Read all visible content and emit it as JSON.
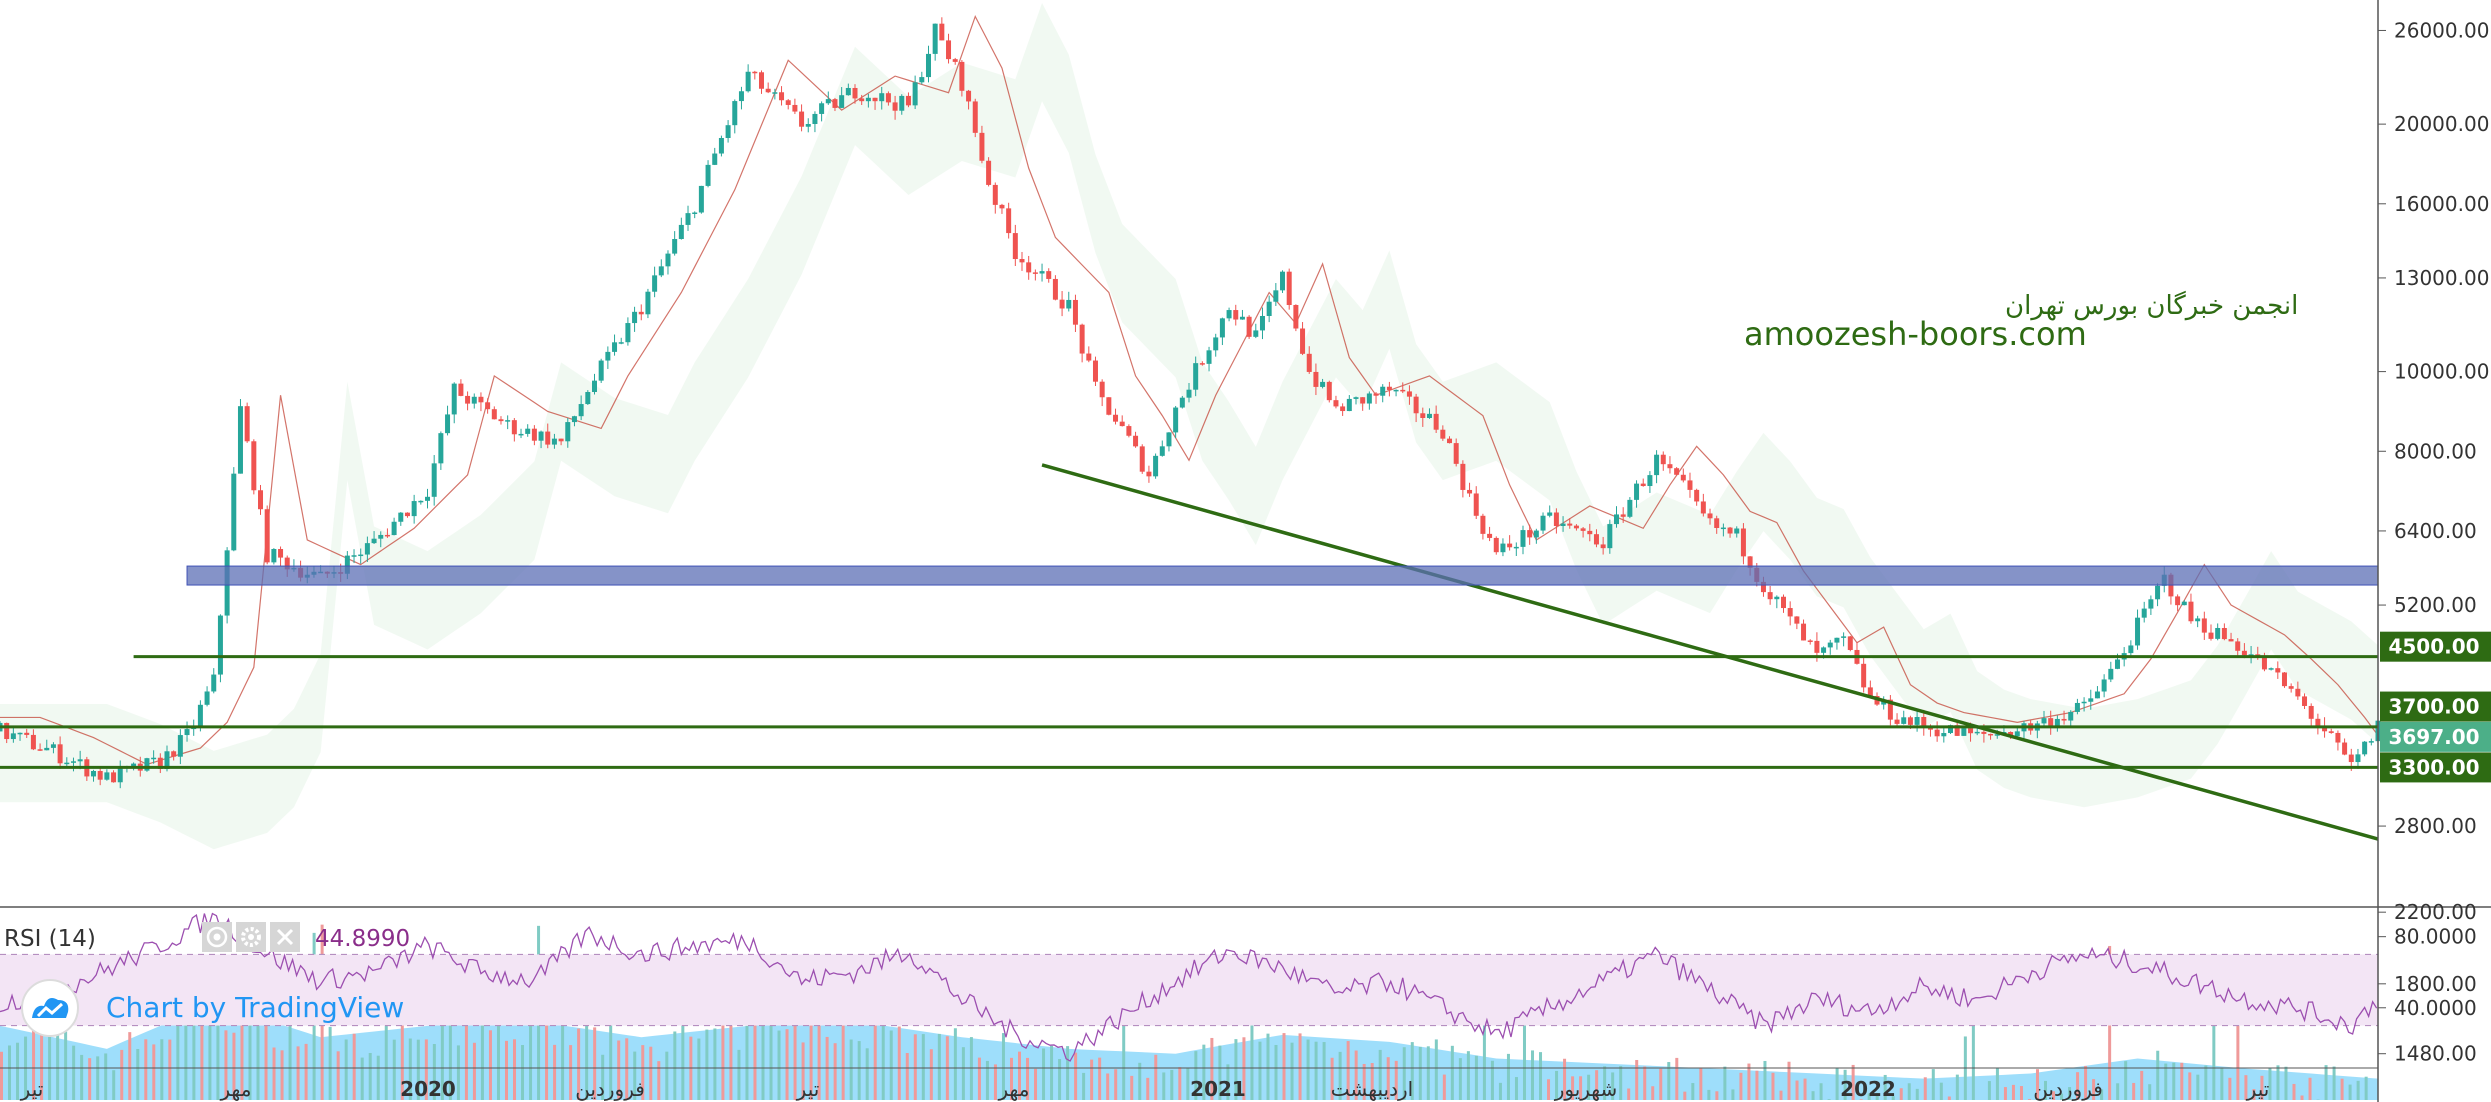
{
  "chart_data": [
    {
      "type": "candlestick",
      "title": "",
      "y_scale": "log",
      "ylim": [
        1300,
        28000
      ],
      "y_ticks": [
        26000,
        20000,
        16000,
        13000,
        10000,
        8000,
        6400,
        5200,
        4500,
        3700,
        3697,
        3300,
        2800,
        2200,
        1800,
        1480
      ],
      "y_tick_labels": [
        "26000.00",
        "20000.00",
        "16000.00",
        "13000.00",
        "10000.00",
        "8000.00",
        "6400.00",
        "5200.00",
        "4500.00",
        "3700.00",
        "3697.00",
        "3300.00",
        "2800.00",
        "2200.00",
        "1800.00",
        "1480.00"
      ],
      "highlighted_prices": [
        {
          "label": "4500.00",
          "color": "#2e6b13"
        },
        {
          "label": "3700.00",
          "color": "#2e6b13"
        },
        {
          "label": "3697.00",
          "color": "#4caf88"
        },
        {
          "label": "3300.00",
          "color": "#2e6b13"
        }
      ],
      "x_labels": [
        "تیر",
        "مهر",
        "2020",
        "فروردین",
        "تیر",
        "مهر",
        "2021",
        "اردیبهشت",
        "شهریور",
        "2022",
        "فروردین",
        "تیر"
      ],
      "price_path": [
        [
          0,
          3650
        ],
        [
          2,
          3450
        ],
        [
          4,
          3200
        ],
        [
          6,
          3350
        ],
        [
          7,
          3600
        ],
        [
          8,
          4200
        ],
        [
          9,
          9000
        ],
        [
          10,
          6000
        ],
        [
          12,
          5600
        ],
        [
          14,
          6200
        ],
        [
          16,
          7200
        ],
        [
          17,
          9500
        ],
        [
          19,
          8600
        ],
        [
          21,
          8200
        ],
        [
          22,
          9500
        ],
        [
          24,
          12000
        ],
        [
          26,
          16000
        ],
        [
          28,
          23000
        ],
        [
          30,
          20000
        ],
        [
          32,
          22000
        ],
        [
          34,
          21000
        ],
        [
          35,
          26000
        ],
        [
          36,
          22500
        ],
        [
          37,
          17000
        ],
        [
          38,
          14000
        ],
        [
          40,
          12000
        ],
        [
          41,
          9500
        ],
        [
          42,
          8500
        ],
        [
          43,
          7500
        ],
        [
          44,
          9000
        ],
        [
          46,
          12000
        ],
        [
          47,
          11000
        ],
        [
          48,
          13000
        ],
        [
          49,
          10000
        ],
        [
          50,
          9000
        ],
        [
          52,
          9500
        ],
        [
          54,
          8500
        ],
        [
          55,
          7000
        ],
        [
          56,
          6000
        ],
        [
          58,
          6600
        ],
        [
          60,
          6200
        ],
        [
          61,
          7000
        ],
        [
          62,
          7800
        ],
        [
          63,
          7200
        ],
        [
          64,
          6500
        ],
        [
          65,
          6300
        ],
        [
          66,
          5500
        ],
        [
          68,
          4500
        ],
        [
          69,
          4700
        ],
        [
          70,
          4000
        ],
        [
          71,
          3800
        ],
        [
          72,
          3700
        ],
        [
          74,
          3600
        ],
        [
          76,
          3700
        ],
        [
          78,
          3900
        ],
        [
          79,
          4300
        ],
        [
          80,
          4900
        ],
        [
          81,
          5600
        ],
        [
          82,
          5000
        ],
        [
          84,
          4600
        ],
        [
          85,
          4300
        ],
        [
          86,
          4000
        ],
        [
          87,
          3650
        ],
        [
          88,
          3300
        ],
        [
          89,
          3697
        ]
      ],
      "volume_path": [
        [
          0,
          1600
        ],
        [
          4,
          1500
        ],
        [
          8,
          1700
        ],
        [
          12,
          1550
        ],
        [
          16,
          1600
        ],
        [
          20,
          1620
        ],
        [
          24,
          1550
        ],
        [
          28,
          1600
        ],
        [
          32,
          1620
        ],
        [
          36,
          1550
        ],
        [
          40,
          1500
        ],
        [
          44,
          1480
        ],
        [
          48,
          1560
        ],
        [
          52,
          1530
        ],
        [
          56,
          1460
        ],
        [
          60,
          1440
        ],
        [
          64,
          1420
        ],
        [
          68,
          1400
        ],
        [
          72,
          1380
        ],
        [
          76,
          1400
        ],
        [
          80,
          1460
        ],
        [
          84,
          1420
        ],
        [
          89,
          1380
        ]
      ],
      "drawings": [
        {
          "kind": "trendline",
          "color": "#2e6b13",
          "from": [
            39,
            7700
          ],
          "to": [
            89,
            2700
          ]
        },
        {
          "kind": "horizontal",
          "color": "#2e6b13",
          "price": 4500,
          "from_x": 5
        },
        {
          "kind": "horizontal",
          "color": "#2e6b13",
          "price": 3697,
          "from_x": 0
        },
        {
          "kind": "horizontal",
          "color": "#2e6b13",
          "price": 3300,
          "from_x": 0
        },
        {
          "kind": "zone",
          "color": "#5c6fb5",
          "price_top": 5800,
          "price_bottom": 5500,
          "from_x": 7,
          "to_x": 89
        }
      ]
    },
    {
      "type": "line",
      "title": "RSI (14)",
      "series": [
        {
          "name": "RSI (14)",
          "current": "44.8990"
        }
      ],
      "ylim": [
        5,
        95
      ],
      "y_ticks": [
        80,
        40
      ],
      "y_tick_labels": [
        "80.0000",
        "40.0000"
      ],
      "band": [
        30,
        70
      ],
      "values_path": [
        [
          0,
          42
        ],
        [
          3,
          55
        ],
        [
          6,
          75
        ],
        [
          8,
          92
        ],
        [
          10,
          70
        ],
        [
          12,
          55
        ],
        [
          14,
          60
        ],
        [
          16,
          75
        ],
        [
          18,
          60
        ],
        [
          20,
          55
        ],
        [
          22,
          82
        ],
        [
          24,
          70
        ],
        [
          26,
          75
        ],
        [
          28,
          78
        ],
        [
          30,
          55
        ],
        [
          32,
          60
        ],
        [
          34,
          72
        ],
        [
          36,
          45
        ],
        [
          38,
          25
        ],
        [
          40,
          15
        ],
        [
          42,
          35
        ],
        [
          44,
          55
        ],
        [
          46,
          72
        ],
        [
          48,
          62
        ],
        [
          50,
          48
        ],
        [
          52,
          55
        ],
        [
          54,
          40
        ],
        [
          56,
          25
        ],
        [
          58,
          40
        ],
        [
          60,
          55
        ],
        [
          62,
          70
        ],
        [
          64,
          50
        ],
        [
          66,
          30
        ],
        [
          68,
          45
        ],
        [
          70,
          38
        ],
        [
          72,
          52
        ],
        [
          74,
          44
        ],
        [
          76,
          60
        ],
        [
          78,
          70
        ],
        [
          80,
          65
        ],
        [
          82,
          55
        ],
        [
          84,
          45
        ],
        [
          86,
          40
        ],
        [
          88,
          30
        ],
        [
          89,
          45
        ]
      ]
    }
  ],
  "watermark": {
    "line1": "انجمن خبرگان بورس تهران",
    "line2": "amoozesh-boors.com"
  },
  "branding": {
    "text": "Chart by TradingView"
  },
  "colors": {
    "up": "#26a69a",
    "down": "#ef5350",
    "accent_green": "#2e6b13",
    "zone_blue": "#5c6fb5",
    "volume_ma": "#4fc3f7",
    "rsi_line": "#9c4fb0",
    "rsi_band": "#f3e5f5"
  },
  "icons": [
    "eye-icon",
    "gear-icon",
    "close-icon",
    "tradingview-logo-icon"
  ]
}
